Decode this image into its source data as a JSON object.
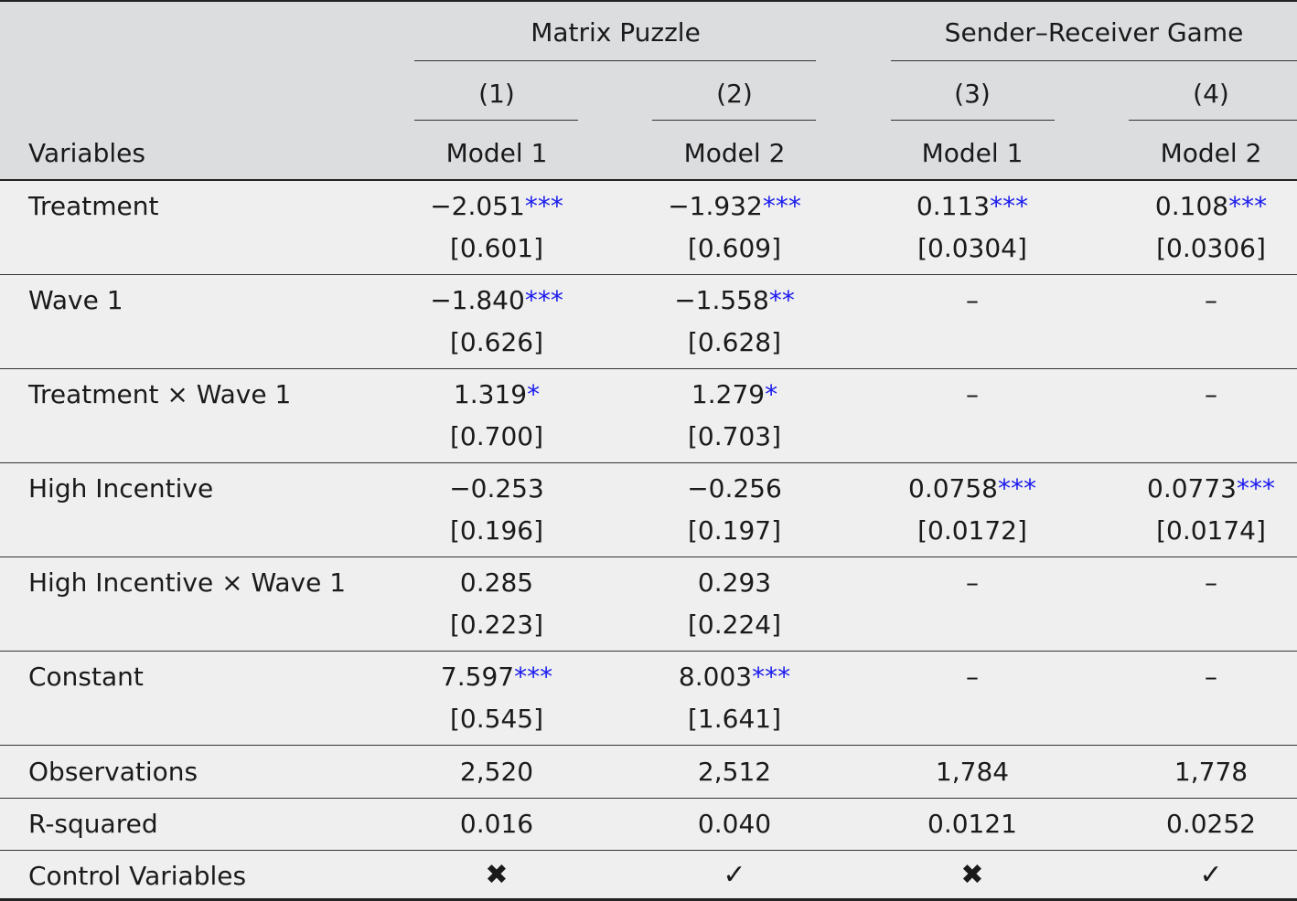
{
  "header": {
    "group1": "Matrix Puzzle",
    "group2": "Sender–Receiver Game",
    "col_numbers": [
      "(1)",
      "(2)",
      "(3)",
      "(4)"
    ],
    "variables_label": "Variables",
    "models": [
      "Model 1",
      "Model 2",
      "Model 1",
      "Model 2"
    ]
  },
  "rows": [
    {
      "label": "Treatment",
      "coef": [
        "−2.051",
        "−1.932",
        "0.113",
        "0.108"
      ],
      "stars": [
        "***",
        "***",
        "***",
        "***"
      ],
      "se": [
        "[0.601]",
        "[0.609]",
        "[0.0304]",
        "[0.0306]"
      ]
    },
    {
      "label": "Wave 1",
      "coef": [
        "−1.840",
        "−1.558",
        "–",
        "–"
      ],
      "stars": [
        "***",
        "**",
        "",
        ""
      ],
      "se": [
        "[0.626]",
        "[0.628]",
        "",
        ""
      ]
    },
    {
      "label": "Treatment × Wave 1",
      "coef": [
        "1.319",
        "1.279",
        "–",
        "–"
      ],
      "stars": [
        "*",
        "*",
        "",
        ""
      ],
      "se": [
        "[0.700]",
        "[0.703]",
        "",
        ""
      ]
    },
    {
      "label": "High Incentive",
      "coef": [
        "−0.253",
        "−0.256",
        "0.0758",
        "0.0773"
      ],
      "stars": [
        "",
        "",
        "***",
        "***"
      ],
      "se": [
        "[0.196]",
        "[0.197]",
        "[0.0172]",
        "[0.0174]"
      ]
    },
    {
      "label": "High Incentive × Wave 1",
      "coef": [
        "0.285",
        "0.293",
        "–",
        "–"
      ],
      "stars": [
        "",
        "",
        "",
        ""
      ],
      "se": [
        "[0.223]",
        "[0.224]",
        "",
        ""
      ]
    },
    {
      "label": "Constant",
      "coef": [
        "7.597",
        "8.003",
        "–",
        "–"
      ],
      "stars": [
        "***",
        "***",
        "",
        ""
      ],
      "se": [
        "[0.545]",
        "[1.641]",
        "",
        ""
      ]
    }
  ],
  "stats": [
    {
      "label": "Observations",
      "values": [
        "2,520",
        "2,512",
        "1,784",
        "1,778"
      ]
    },
    {
      "label": "R-squared",
      "values": [
        "0.016",
        "0.040",
        "0.0121",
        "0.0252"
      ]
    },
    {
      "label": "Control Variables",
      "values": [
        "✖",
        "✓",
        "✖",
        "✓"
      ]
    }
  ],
  "colors": {
    "header_bg": "#dcdddf",
    "body_bg": "#eeefee",
    "significance_stars": "#1a1aee"
  }
}
